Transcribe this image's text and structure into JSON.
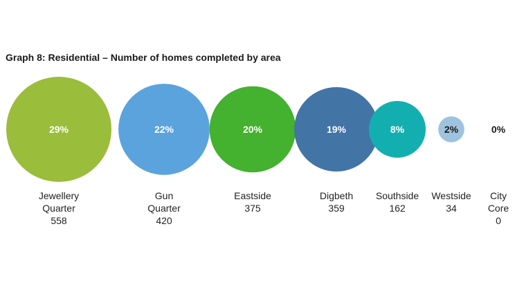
{
  "title": "Graph 8: Residential – Number of homes completed by area",
  "chart_data": {
    "type": "bubble",
    "title": "Graph 8: Residential – Number of homes completed by area",
    "categories": [
      {
        "name_lines": [
          "Jewellery",
          "Quarter"
        ],
        "value": 558,
        "percent": "29%",
        "color": "#9abd3c"
      },
      {
        "name_lines": [
          "Gun",
          "Quarter"
        ],
        "value": 420,
        "percent": "22%",
        "color": "#5ba3dc"
      },
      {
        "name_lines": [
          "Eastside"
        ],
        "value": 375,
        "percent": "20%",
        "color": "#44b12f"
      },
      {
        "name_lines": [
          "Digbeth"
        ],
        "value": 359,
        "percent": "19%",
        "color": "#4274a6"
      },
      {
        "name_lines": [
          "Southside"
        ],
        "value": 162,
        "percent": "8%",
        "color": "#13afb0"
      },
      {
        "name_lines": [
          "Westside"
        ],
        "value": 34,
        "percent": "2%",
        "color": "#9ec3de"
      },
      {
        "name_lines": [
          "City",
          "Core"
        ],
        "value": 0,
        "percent": "0%",
        "color": "#cccccc"
      }
    ]
  }
}
